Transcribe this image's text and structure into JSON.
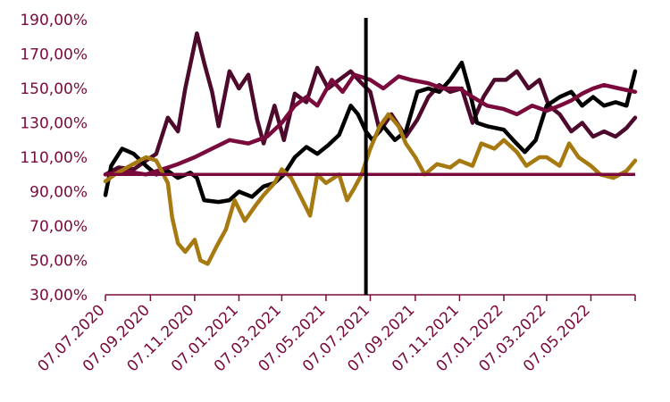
{
  "chart_data": {
    "type": "line",
    "title": "",
    "xlabel": "",
    "ylabel": "",
    "ylim": [
      30,
      190
    ],
    "y_ticks": [
      "30,00%",
      "50,00%",
      "70,00%",
      "90,00%",
      "110,00%",
      "130,00%",
      "150,00%",
      "170,00%",
      "190,00%"
    ],
    "y_tick_values": [
      30,
      50,
      70,
      90,
      110,
      130,
      150,
      170,
      190
    ],
    "x_range": [
      "2020-07-07",
      "2022-07-07"
    ],
    "x_ticks": [
      "07.07.2020",
      "07.09.2020",
      "07.11.2020",
      "07.01.2021",
      "07.03.2021",
      "07.05.2021",
      "07.07.2021",
      "07.09.2021",
      "07.11.2021",
      "07.01.2022",
      "07.03.2022",
      "07.05.2022"
    ],
    "x_tick_dates": [
      "2020-07-07",
      "2020-09-07",
      "2020-11-07",
      "2021-01-07",
      "2021-03-07",
      "2021-05-07",
      "2021-07-07",
      "2021-09-07",
      "2021-11-07",
      "2022-01-07",
      "2022-03-07",
      "2022-05-07"
    ],
    "reference_line": 100,
    "vertical_marker": "2021-07-01",
    "colors": {
      "text": "#7a0a3c",
      "axis": "#7a0a3c",
      "reference": "#7a0a3c",
      "marker": "#000000"
    },
    "series": [
      {
        "color": "#4d0a2c",
        "points": [
          [
            "2020-07-07",
            100
          ],
          [
            "2020-07-25",
            104
          ],
          [
            "2020-08-15",
            103
          ],
          [
            "2020-09-01",
            108
          ],
          [
            "2020-09-15",
            112
          ],
          [
            "2020-10-01",
            133
          ],
          [
            "2020-10-15",
            125
          ],
          [
            "2020-10-25",
            150
          ],
          [
            "2020-11-10",
            182
          ],
          [
            "2020-11-20",
            165
          ],
          [
            "2020-12-01",
            148
          ],
          [
            "2020-12-10",
            128
          ],
          [
            "2020-12-25",
            160
          ],
          [
            "2021-01-07",
            150
          ],
          [
            "2021-01-20",
            158
          ],
          [
            "2021-02-01",
            132
          ],
          [
            "2021-02-10",
            118
          ],
          [
            "2021-02-25",
            140
          ],
          [
            "2021-03-10",
            120
          ],
          [
            "2021-03-25",
            147
          ],
          [
            "2021-04-10",
            142
          ],
          [
            "2021-04-25",
            162
          ],
          [
            "2021-05-10",
            150
          ],
          [
            "2021-05-25",
            155
          ],
          [
            "2021-06-10",
            160
          ],
          [
            "2021-06-25",
            153
          ],
          [
            "2021-07-07",
            148
          ],
          [
            "2021-07-20",
            125
          ],
          [
            "2021-08-05",
            135
          ],
          [
            "2021-08-25",
            122
          ],
          [
            "2021-09-10",
            132
          ],
          [
            "2021-09-25",
            145
          ],
          [
            "2021-10-10",
            152
          ],
          [
            "2021-10-25",
            148
          ],
          [
            "2021-11-10",
            150
          ],
          [
            "2021-11-25",
            130
          ],
          [
            "2021-12-10",
            145
          ],
          [
            "2021-12-25",
            155
          ],
          [
            "2022-01-10",
            155
          ],
          [
            "2022-01-25",
            160
          ],
          [
            "2022-02-10",
            150
          ],
          [
            "2022-02-25",
            155
          ],
          [
            "2022-03-10",
            140
          ],
          [
            "2022-03-25",
            135
          ],
          [
            "2022-04-10",
            125
          ],
          [
            "2022-04-25",
            130
          ],
          [
            "2022-05-10",
            122
          ],
          [
            "2022-05-25",
            125
          ],
          [
            "2022-06-10",
            122
          ],
          [
            "2022-06-25",
            127
          ],
          [
            "2022-07-07",
            133
          ]
        ]
      },
      {
        "color": "#000000",
        "points": [
          [
            "2020-07-07",
            88
          ],
          [
            "2020-07-15",
            105
          ],
          [
            "2020-07-30",
            115
          ],
          [
            "2020-08-15",
            112
          ],
          [
            "2020-09-01",
            105
          ],
          [
            "2020-09-15",
            100
          ],
          [
            "2020-10-01",
            102
          ],
          [
            "2020-10-15",
            98
          ],
          [
            "2020-11-01",
            101
          ],
          [
            "2020-11-10",
            98
          ],
          [
            "2020-11-20",
            85
          ],
          [
            "2020-12-10",
            84
          ],
          [
            "2020-12-25",
            85
          ],
          [
            "2021-01-07",
            90
          ],
          [
            "2021-01-25",
            87
          ],
          [
            "2021-02-10",
            93
          ],
          [
            "2021-02-25",
            95
          ],
          [
            "2021-03-10",
            100
          ],
          [
            "2021-03-25",
            110
          ],
          [
            "2021-04-10",
            116
          ],
          [
            "2021-04-25",
            112
          ],
          [
            "2021-05-10",
            117
          ],
          [
            "2021-05-25",
            123
          ],
          [
            "2021-06-10",
            140
          ],
          [
            "2021-06-20",
            135
          ],
          [
            "2021-07-01",
            125
          ],
          [
            "2021-07-10",
            120
          ],
          [
            "2021-07-25",
            128
          ],
          [
            "2021-08-10",
            120
          ],
          [
            "2021-08-25",
            125
          ],
          [
            "2021-09-10",
            148
          ],
          [
            "2021-09-25",
            150
          ],
          [
            "2021-10-10",
            148
          ],
          [
            "2021-10-25",
            155
          ],
          [
            "2021-11-10",
            165
          ],
          [
            "2021-11-20",
            150
          ],
          [
            "2021-12-01",
            130
          ],
          [
            "2021-12-15",
            128
          ],
          [
            "2022-01-07",
            126
          ],
          [
            "2022-01-20",
            120
          ],
          [
            "2022-02-05",
            113
          ],
          [
            "2022-02-20",
            120
          ],
          [
            "2022-03-07",
            140
          ],
          [
            "2022-03-25",
            145
          ],
          [
            "2022-04-10",
            148
          ],
          [
            "2022-04-25",
            140
          ],
          [
            "2022-05-10",
            145
          ],
          [
            "2022-05-25",
            140
          ],
          [
            "2022-06-10",
            142
          ],
          [
            "2022-06-25",
            140
          ],
          [
            "2022-07-07",
            160
          ]
        ]
      },
      {
        "color": "#7a0a3c",
        "points": [
          [
            "2020-07-07",
            100
          ],
          [
            "2020-08-01",
            102
          ],
          [
            "2020-09-01",
            100
          ],
          [
            "2020-10-01",
            104
          ],
          [
            "2020-10-15",
            106
          ],
          [
            "2020-11-07",
            110
          ],
          [
            "2020-12-01",
            115
          ],
          [
            "2020-12-25",
            120
          ],
          [
            "2021-01-20",
            118
          ],
          [
            "2021-02-15",
            122
          ],
          [
            "2021-03-07",
            130
          ],
          [
            "2021-03-25",
            140
          ],
          [
            "2021-04-10",
            145
          ],
          [
            "2021-04-25",
            140
          ],
          [
            "2021-05-15",
            155
          ],
          [
            "2021-05-30",
            148
          ],
          [
            "2021-06-15",
            158
          ],
          [
            "2021-07-07",
            155
          ],
          [
            "2021-07-25",
            150
          ],
          [
            "2021-08-15",
            157
          ],
          [
            "2021-09-01",
            155
          ],
          [
            "2021-09-25",
            153
          ],
          [
            "2021-10-15",
            150
          ],
          [
            "2021-11-07",
            150
          ],
          [
            "2021-11-25",
            145
          ],
          [
            "2021-12-15",
            140
          ],
          [
            "2022-01-07",
            138
          ],
          [
            "2022-01-25",
            135
          ],
          [
            "2022-02-15",
            140
          ],
          [
            "2022-03-07",
            137
          ],
          [
            "2022-03-25",
            140
          ],
          [
            "2022-04-10",
            143
          ],
          [
            "2022-04-25",
            147
          ],
          [
            "2022-05-10",
            150
          ],
          [
            "2022-05-25",
            152
          ],
          [
            "2022-06-15",
            150
          ],
          [
            "2022-07-07",
            148
          ]
        ]
      },
      {
        "color": "#a67a10",
        "points": [
          [
            "2020-07-07",
            96
          ],
          [
            "2020-07-20",
            100
          ],
          [
            "2020-08-10",
            105
          ],
          [
            "2020-09-01",
            110
          ],
          [
            "2020-09-15",
            108
          ],
          [
            "2020-10-01",
            95
          ],
          [
            "2020-10-07",
            75
          ],
          [
            "2020-10-15",
            60
          ],
          [
            "2020-10-25",
            55
          ],
          [
            "2020-11-07",
            62
          ],
          [
            "2020-11-15",
            50
          ],
          [
            "2020-11-25",
            48
          ],
          [
            "2020-12-07",
            58
          ],
          [
            "2020-12-20",
            68
          ],
          [
            "2021-01-01",
            85
          ],
          [
            "2021-01-15",
            73
          ],
          [
            "2021-01-30",
            82
          ],
          [
            "2021-02-10",
            88
          ],
          [
            "2021-02-25",
            95
          ],
          [
            "2021-03-07",
            103
          ],
          [
            "2021-03-20",
            98
          ],
          [
            "2021-04-01",
            88
          ],
          [
            "2021-04-15",
            76
          ],
          [
            "2021-04-25",
            100
          ],
          [
            "2021-05-07",
            95
          ],
          [
            "2021-05-25",
            100
          ],
          [
            "2021-06-05",
            85
          ],
          [
            "2021-06-15",
            92
          ],
          [
            "2021-06-25",
            100
          ],
          [
            "2021-07-07",
            115
          ],
          [
            "2021-07-20",
            128
          ],
          [
            "2021-08-01",
            135
          ],
          [
            "2021-08-15",
            128
          ],
          [
            "2021-08-25",
            118
          ],
          [
            "2021-09-07",
            110
          ],
          [
            "2021-09-20",
            100
          ],
          [
            "2021-10-07",
            106
          ],
          [
            "2021-10-25",
            104
          ],
          [
            "2021-11-07",
            108
          ],
          [
            "2021-11-25",
            105
          ],
          [
            "2021-12-07",
            118
          ],
          [
            "2021-12-25",
            115
          ],
          [
            "2022-01-07",
            120
          ],
          [
            "2022-01-25",
            113
          ],
          [
            "2022-02-07",
            105
          ],
          [
            "2022-02-25",
            110
          ],
          [
            "2022-03-07",
            110
          ],
          [
            "2022-03-25",
            105
          ],
          [
            "2022-04-07",
            118
          ],
          [
            "2022-04-20",
            110
          ],
          [
            "2022-05-07",
            105
          ],
          [
            "2022-05-20",
            100
          ],
          [
            "2022-06-07",
            98
          ],
          [
            "2022-06-25",
            102
          ],
          [
            "2022-07-07",
            108
          ]
        ]
      }
    ]
  }
}
